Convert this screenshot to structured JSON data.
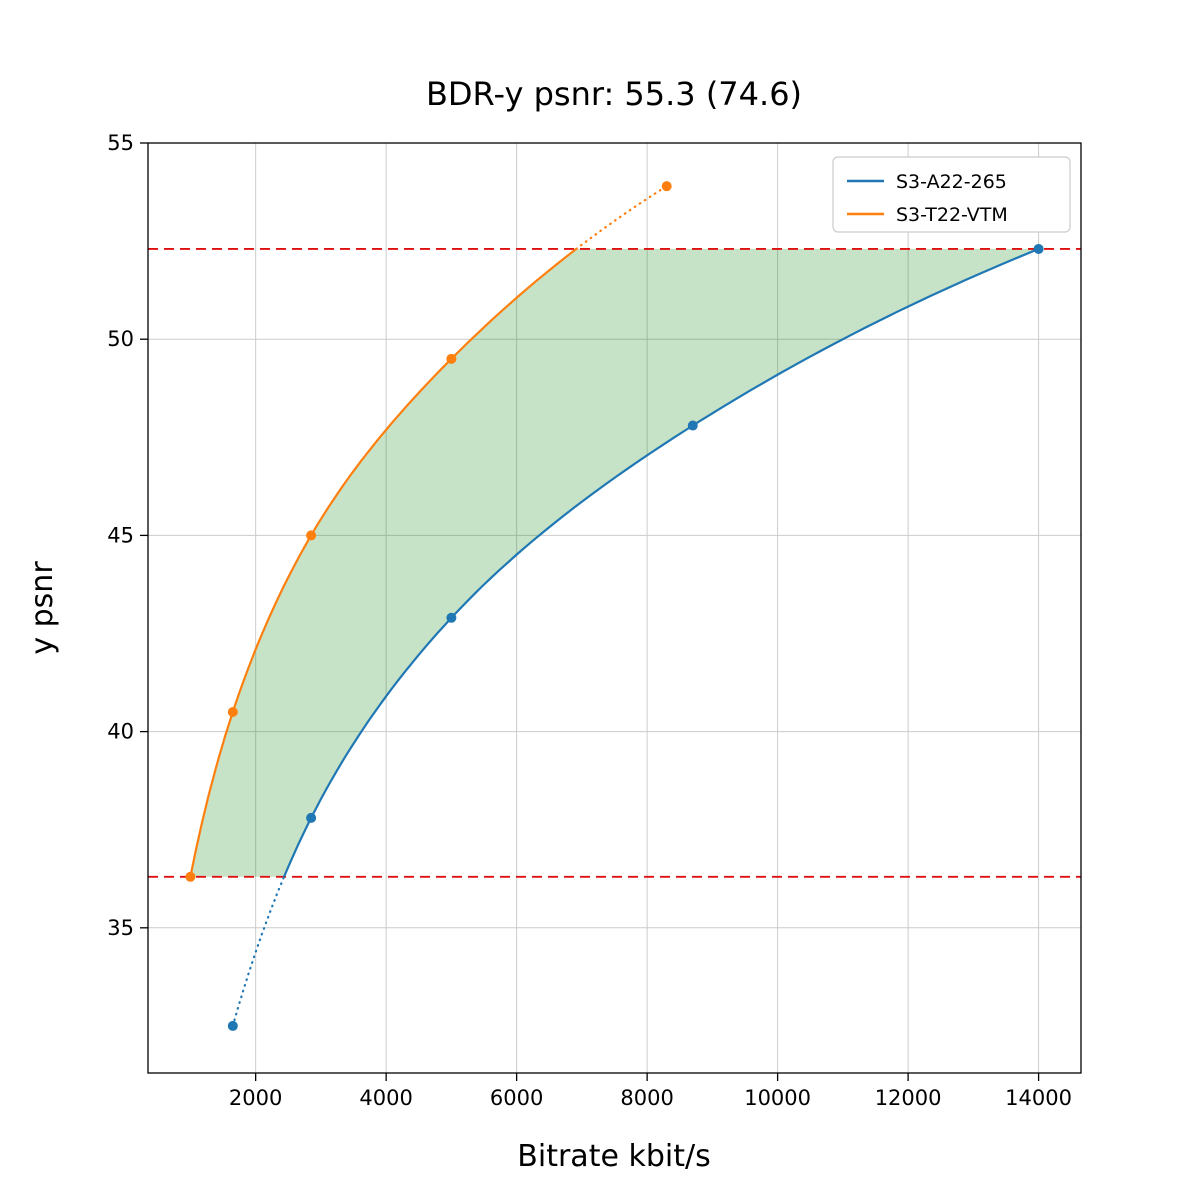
{
  "chart_data": {
    "type": "line",
    "title": "BDR-y psnr: 55.3 (74.6)",
    "xlabel": "Bitrate kbit/s",
    "ylabel": "y psnr",
    "xlim": [
      350,
      14650
    ],
    "ylim": [
      31.3,
      55.0
    ],
    "xticks": [
      2000,
      4000,
      6000,
      8000,
      10000,
      12000,
      14000
    ],
    "yticks": [
      35,
      40,
      45,
      50,
      55
    ],
    "grid": true,
    "legend": {
      "position": "upper right",
      "entries": [
        "S3-A22-265",
        "S3-T22-VTM"
      ]
    },
    "series": [
      {
        "name": "S3-A22-265",
        "color": "#1f77b4",
        "marker": "circle",
        "x": [
          1650,
          2850,
          5000,
          8700,
          14000
        ],
        "y": [
          32.5,
          37.8,
          42.9,
          47.8,
          52.3
        ]
      },
      {
        "name": "S3-T22-VTM",
        "color": "#ff7f0e",
        "marker": "circle",
        "x": [
          1000,
          1650,
          2850,
          5000,
          8300
        ],
        "y": [
          36.3,
          40.5,
          45.0,
          49.5,
          53.9
        ]
      }
    ],
    "reference_lines": {
      "style": "dashed",
      "color": "#e01010",
      "y_low": 36.3,
      "y_high": 52.3
    },
    "fill_between": {
      "color": "#008000",
      "opacity": 0.22,
      "from_psnr": 36.3,
      "to_psnr": 52.3
    }
  }
}
